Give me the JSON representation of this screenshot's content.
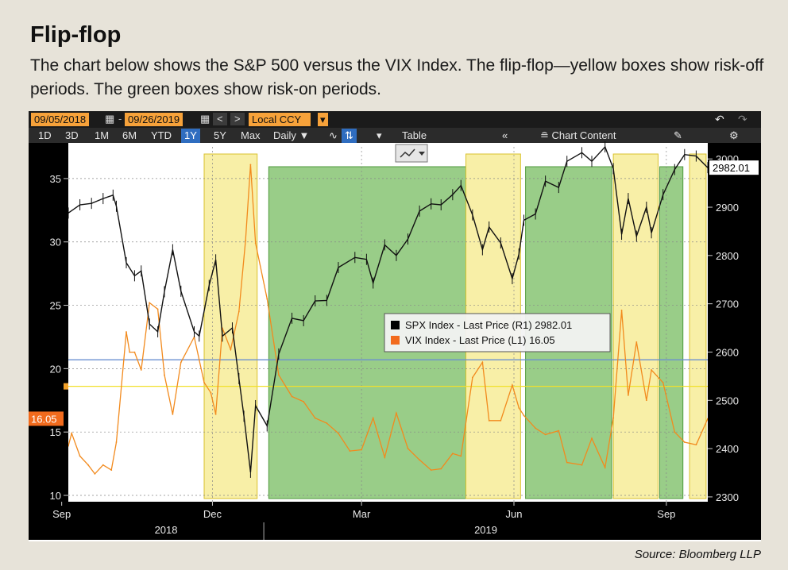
{
  "heading": {
    "title": "Flip-flop",
    "subtitle": "The chart below shows the S&P 500 versus the VIX Index. The flip-flop—yellow boxes show risk-off periods. The green boxes show risk-on periods.",
    "source": "Source: Bloomberg LLP"
  },
  "toolbar": {
    "start_date": "09/05/2018",
    "end_date": "09/26/2019",
    "currency": "Local CCY",
    "periods": [
      "1D",
      "3D",
      "1M",
      "6M",
      "YTD",
      "1Y",
      "5Y",
      "Max"
    ],
    "selected_period": "1Y",
    "frequency": "Daily",
    "table_label": "Table",
    "chart_content_label": "Chart Content",
    "icons": [
      "calendar-icon",
      "prev-arrow-icon",
      "next-arrow-icon",
      "dropdown-icon",
      "undo-icon",
      "redo-icon",
      "line-chart-icon",
      "bar-chart-icon",
      "collapse-icon",
      "edit-icon",
      "settings-icon"
    ]
  },
  "chart_data": {
    "type": "line",
    "x": {
      "start": "2018-09-05",
      "end": "2019-09-26",
      "tick_labels": [
        "Sep",
        "Dec",
        "Mar",
        "Jun",
        "Sep"
      ],
      "tick_dates": [
        "2018-09-01",
        "2018-12-01",
        "2019-03-01",
        "2019-06-01",
        "2019-09-01"
      ],
      "year_labels": [
        "2018",
        "2019"
      ]
    },
    "y_left": {
      "name": "VIX Index",
      "ylim": [
        9.5,
        37.5
      ],
      "ticks": [
        10,
        15,
        20,
        25,
        30,
        35
      ]
    },
    "y_right": {
      "name": "SPX Index",
      "ylim": [
        2290,
        3025
      ],
      "ticks": [
        2300,
        2400,
        2500,
        2600,
        2700,
        2800,
        2900,
        3000
      ]
    },
    "grid": true,
    "series": [
      {
        "name": "SPX Index - Last Price (R1)",
        "axis": "right",
        "color": "#111111",
        "last": "2982.01",
        "points": [
          [
            "2018-09-05",
            2888
          ],
          [
            "2018-09-12",
            2905
          ],
          [
            "2018-09-19",
            2908
          ],
          [
            "2018-09-26",
            2918
          ],
          [
            "2018-10-02",
            2925
          ],
          [
            "2018-10-04",
            2902
          ],
          [
            "2018-10-10",
            2785
          ],
          [
            "2018-10-15",
            2758
          ],
          [
            "2018-10-19",
            2768
          ],
          [
            "2018-10-24",
            2658
          ],
          [
            "2018-10-29",
            2642
          ],
          [
            "2018-11-02",
            2725
          ],
          [
            "2018-11-07",
            2812
          ],
          [
            "2018-11-12",
            2726
          ],
          [
            "2018-11-20",
            2642
          ],
          [
            "2018-11-23",
            2633
          ],
          [
            "2018-11-29",
            2738
          ],
          [
            "2018-12-03",
            2791
          ],
          [
            "2018-12-07",
            2633
          ],
          [
            "2018-12-13",
            2650
          ],
          [
            "2018-12-17",
            2545
          ],
          [
            "2018-12-20",
            2467
          ],
          [
            "2018-12-24",
            2351
          ],
          [
            "2018-12-27",
            2489
          ],
          [
            "2019-01-03",
            2447
          ],
          [
            "2019-01-10",
            2596
          ],
          [
            "2019-01-18",
            2670
          ],
          [
            "2019-01-25",
            2665
          ],
          [
            "2019-02-01",
            2706
          ],
          [
            "2019-02-08",
            2707
          ],
          [
            "2019-02-15",
            2775
          ],
          [
            "2019-02-25",
            2796
          ],
          [
            "2019-03-04",
            2792
          ],
          [
            "2019-03-08",
            2743
          ],
          [
            "2019-03-15",
            2822
          ],
          [
            "2019-03-22",
            2800
          ],
          [
            "2019-03-29",
            2834
          ],
          [
            "2019-04-05",
            2892
          ],
          [
            "2019-04-12",
            2907
          ],
          [
            "2019-04-18",
            2905
          ],
          [
            "2019-04-25",
            2926
          ],
          [
            "2019-04-30",
            2945
          ],
          [
            "2019-05-07",
            2884
          ],
          [
            "2019-05-13",
            2812
          ],
          [
            "2019-05-17",
            2859
          ],
          [
            "2019-05-24",
            2826
          ],
          [
            "2019-05-31",
            2752
          ],
          [
            "2019-06-04",
            2803
          ],
          [
            "2019-06-07",
            2873
          ],
          [
            "2019-06-14",
            2886
          ],
          [
            "2019-06-20",
            2954
          ],
          [
            "2019-06-28",
            2941
          ],
          [
            "2019-07-03",
            2995
          ],
          [
            "2019-07-12",
            3013
          ],
          [
            "2019-07-18",
            2995
          ],
          [
            "2019-07-26",
            3025
          ],
          [
            "2019-07-31",
            2980
          ],
          [
            "2019-08-05",
            2844
          ],
          [
            "2019-08-09",
            2918
          ],
          [
            "2019-08-14",
            2840
          ],
          [
            "2019-08-20",
            2900
          ],
          [
            "2019-08-23",
            2847
          ],
          [
            "2019-08-30",
            2926
          ],
          [
            "2019-09-06",
            2978
          ],
          [
            "2019-09-12",
            3009
          ],
          [
            "2019-09-19",
            3006
          ],
          [
            "2019-09-26",
            2982
          ]
        ]
      },
      {
        "name": "VIX Index - Last Price (L1)",
        "axis": "left",
        "color": "#f28a1d",
        "last": "16.05",
        "points": [
          [
            "2018-09-05",
            13.9
          ],
          [
            "2018-09-07",
            14.9
          ],
          [
            "2018-09-12",
            13.1
          ],
          [
            "2018-09-17",
            12.4
          ],
          [
            "2018-09-21",
            11.7
          ],
          [
            "2018-09-26",
            12.4
          ],
          [
            "2018-10-01",
            12.0
          ],
          [
            "2018-10-04",
            14.2
          ],
          [
            "2018-10-10",
            22.9
          ],
          [
            "2018-10-12",
            21.3
          ],
          [
            "2018-10-15",
            21.3
          ],
          [
            "2018-10-19",
            19.9
          ],
          [
            "2018-10-24",
            25.2
          ],
          [
            "2018-10-29",
            24.7
          ],
          [
            "2018-11-02",
            19.5
          ],
          [
            "2018-11-07",
            16.4
          ],
          [
            "2018-11-12",
            20.5
          ],
          [
            "2018-11-20",
            22.5
          ],
          [
            "2018-11-26",
            18.9
          ],
          [
            "2018-11-30",
            18.1
          ],
          [
            "2018-12-03",
            16.4
          ],
          [
            "2018-12-07",
            23.2
          ],
          [
            "2018-12-12",
            21.5
          ],
          [
            "2018-12-17",
            24.5
          ],
          [
            "2018-12-21",
            30.1
          ],
          [
            "2018-12-24",
            36.1
          ],
          [
            "2018-12-27",
            29.9
          ],
          [
            "2019-01-03",
            25.5
          ],
          [
            "2019-01-10",
            19.5
          ],
          [
            "2019-01-18",
            17.8
          ],
          [
            "2019-01-25",
            17.4
          ],
          [
            "2019-02-01",
            16.1
          ],
          [
            "2019-02-08",
            15.7
          ],
          [
            "2019-02-15",
            14.9
          ],
          [
            "2019-02-22",
            13.5
          ],
          [
            "2019-03-01",
            13.6
          ],
          [
            "2019-03-08",
            16.1
          ],
          [
            "2019-03-15",
            13.0
          ],
          [
            "2019-03-22",
            16.5
          ],
          [
            "2019-03-29",
            13.7
          ],
          [
            "2019-04-05",
            12.8
          ],
          [
            "2019-04-12",
            12.0
          ],
          [
            "2019-04-18",
            12.1
          ],
          [
            "2019-04-25",
            13.3
          ],
          [
            "2019-04-30",
            13.1
          ],
          [
            "2019-05-07",
            19.3
          ],
          [
            "2019-05-13",
            20.5
          ],
          [
            "2019-05-17",
            15.9
          ],
          [
            "2019-05-24",
            15.9
          ],
          [
            "2019-05-31",
            18.7
          ],
          [
            "2019-06-04",
            16.9
          ],
          [
            "2019-06-07",
            16.3
          ],
          [
            "2019-06-14",
            15.3
          ],
          [
            "2019-06-20",
            14.8
          ],
          [
            "2019-06-28",
            15.1
          ],
          [
            "2019-07-03",
            12.6
          ],
          [
            "2019-07-12",
            12.4
          ],
          [
            "2019-07-18",
            14.5
          ],
          [
            "2019-07-26",
            12.2
          ],
          [
            "2019-07-31",
            16.1
          ],
          [
            "2019-08-05",
            24.6
          ],
          [
            "2019-08-09",
            17.9
          ],
          [
            "2019-08-14",
            22.1
          ],
          [
            "2019-08-20",
            17.5
          ],
          [
            "2019-08-23",
            19.9
          ],
          [
            "2019-08-30",
            18.9
          ],
          [
            "2019-09-06",
            15.0
          ],
          [
            "2019-09-12",
            14.2
          ],
          [
            "2019-09-19",
            14.0
          ],
          [
            "2019-09-26",
            16.05
          ]
        ]
      }
    ],
    "reference_lines": [
      {
        "axis": "right",
        "value": 2584,
        "color": "#6a8fd0"
      },
      {
        "axis": "right",
        "value": 2529,
        "color": "#f1e02a"
      }
    ],
    "regions": [
      {
        "type": "risk-off",
        "color": "yellow",
        "start": "2018-11-26",
        "end": "2018-12-28"
      },
      {
        "type": "risk-on",
        "color": "green",
        "start": "2019-01-04",
        "end": "2019-05-03"
      },
      {
        "type": "risk-off",
        "color": "yellow",
        "start": "2019-05-03",
        "end": "2019-06-05"
      },
      {
        "type": "risk-on",
        "color": "green",
        "start": "2019-06-08",
        "end": "2019-07-30"
      },
      {
        "type": "risk-off",
        "color": "yellow",
        "start": "2019-07-31",
        "end": "2019-08-27"
      },
      {
        "type": "risk-on",
        "color": "green",
        "start": "2019-08-28",
        "end": "2019-09-11"
      },
      {
        "type": "risk-off",
        "color": "yellow",
        "start": "2019-09-15",
        "end": "2019-09-25"
      }
    ],
    "legend": {
      "placement": "center",
      "items": [
        {
          "label": "SPX Index - Last Price (R1)",
          "value": "2982.01",
          "color": "#000000"
        },
        {
          "label": "VIX Index - Last Price (L1)",
          "value": "16.05",
          "color": "#f26b1d"
        }
      ]
    }
  }
}
